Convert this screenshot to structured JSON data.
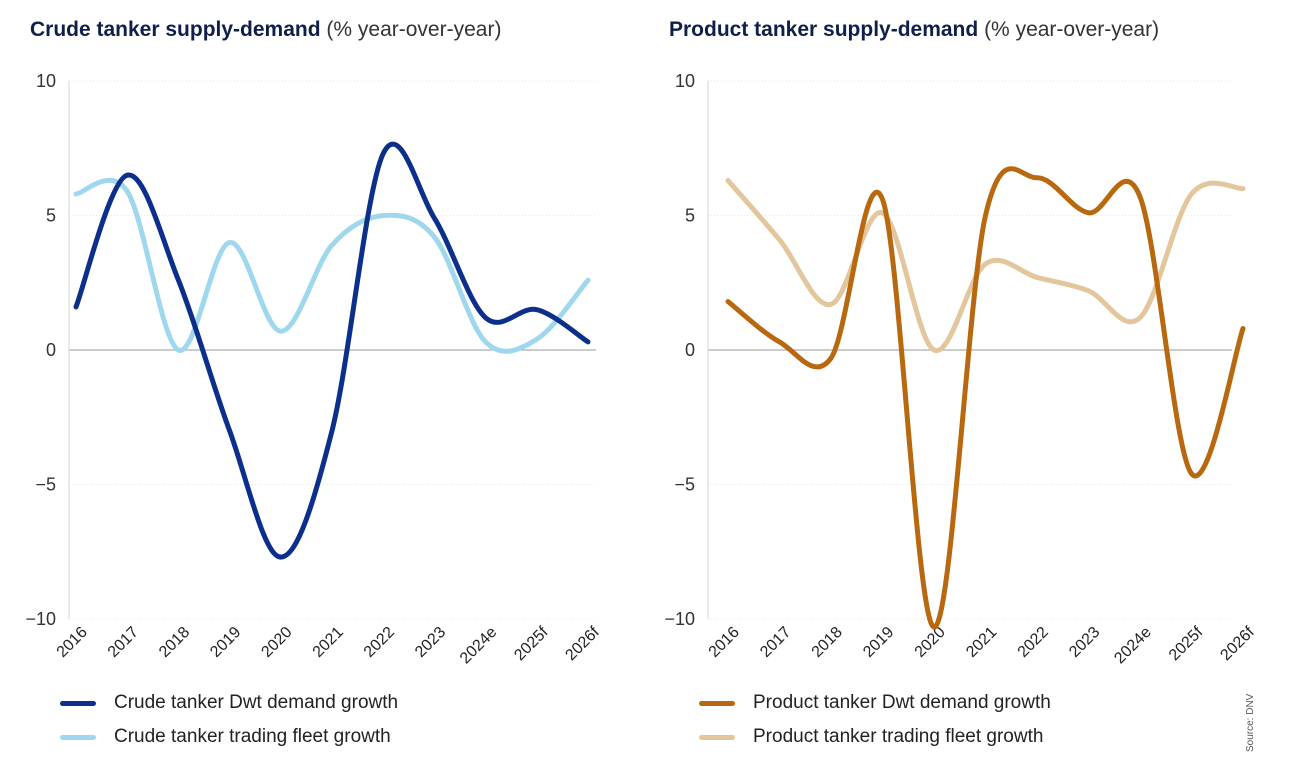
{
  "source": "Source: DNV",
  "chart_data": [
    {
      "type": "line",
      "title": "Crude tanker supply-demand",
      "title_unit": "(% year-over-year)",
      "xlabel": "",
      "ylabel": "",
      "categories": [
        "2016",
        "2017",
        "2018",
        "2019",
        "2020",
        "2021",
        "2022",
        "2023",
        "2024e",
        "2025f",
        "2026f"
      ],
      "ylim": [
        -10,
        10
      ],
      "yticks": [
        "10",
        "5",
        "0",
        "−5",
        "−10"
      ],
      "ytick_values": [
        10,
        5,
        0,
        -5,
        -10
      ],
      "grid": true,
      "legend_position": "bottom-left",
      "series": [
        {
          "name": "Crude tanker Dwt demand growth",
          "color": "#0b2f8a",
          "values": [
            1.6,
            6.5,
            2.6,
            -3.0,
            -7.7,
            -3.0,
            7.3,
            4.9,
            1.2,
            1.5,
            0.3
          ]
        },
        {
          "name": "Crude tanker trading fleet growth",
          "color": "#9fd8ee",
          "values": [
            5.8,
            5.9,
            0.0,
            4.0,
            0.7,
            3.9,
            5.0,
            4.2,
            0.3,
            0.4,
            2.6
          ]
        }
      ]
    },
    {
      "type": "line",
      "title": "Product tanker supply-demand",
      "title_unit": "(% year-over-year)",
      "xlabel": "",
      "ylabel": "",
      "categories": [
        "2016",
        "2017",
        "2018",
        "2019",
        "2020",
        "2021",
        "2022",
        "2023",
        "2024e",
        "2025f",
        "2026f"
      ],
      "ylim": [
        -10,
        10
      ],
      "yticks": [
        "10",
        "5",
        "0",
        "−5",
        "−10"
      ],
      "ytick_values": [
        10,
        5,
        0,
        -5,
        -10
      ],
      "grid": true,
      "legend_position": "bottom-left",
      "series": [
        {
          "name": "Product tanker Dwt demand growth",
          "color": "#b8680f",
          "values": [
            1.8,
            0.3,
            -0.3,
            5.6,
            -10.3,
            5.0,
            6.4,
            5.1,
            5.7,
            -4.6,
            0.8
          ]
        },
        {
          "name": "Product tanker trading fleet growth",
          "color": "#e3c69c",
          "values": [
            6.3,
            4.1,
            1.7,
            5.1,
            0.0,
            3.2,
            2.7,
            2.2,
            1.2,
            5.8,
            6.0
          ]
        }
      ]
    }
  ]
}
